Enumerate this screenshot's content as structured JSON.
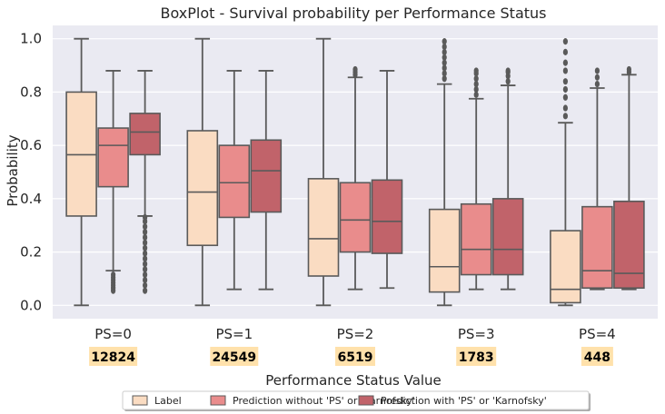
{
  "chart_data": {
    "type": "boxplot",
    "title": "BoxPlot - Survival probability per Performance Status",
    "xlabel": "Performance Status Value",
    "ylabel": "Probability",
    "ylim": [
      -0.05,
      1.05
    ],
    "yticks": [
      "0.0",
      "0.2",
      "0.4",
      "0.6",
      "0.8",
      "1.0"
    ],
    "ytick_values": [
      0,
      0.2,
      0.4,
      0.6,
      0.8,
      1.0
    ],
    "grid": true,
    "legend_position": "bottom-center",
    "categories": [
      "PS=0",
      "PS=1",
      "PS=2",
      "PS=3",
      "PS=4"
    ],
    "counts": [
      "12824",
      "24549",
      "6519",
      "1783",
      "448"
    ],
    "series": [
      {
        "name": "Label",
        "color": "#fadcc2",
        "boxes": [
          {
            "whisker_low": 0.0,
            "q1": 0.335,
            "median": 0.565,
            "q3": 0.8,
            "whisker_high": 1.0,
            "outliers_low": [],
            "outliers_high": []
          },
          {
            "whisker_low": 0.0,
            "q1": 0.225,
            "median": 0.425,
            "q3": 0.655,
            "whisker_high": 1.0,
            "outliers_low": [],
            "outliers_high": []
          },
          {
            "whisker_low": 0.0,
            "q1": 0.11,
            "median": 0.25,
            "q3": 0.475,
            "whisker_high": 1.0,
            "outliers_low": [],
            "outliers_high": []
          },
          {
            "whisker_low": 0.0,
            "q1": 0.05,
            "median": 0.145,
            "q3": 0.36,
            "whisker_high": 0.83,
            "outliers_low": [],
            "outliers_high": [
              0.85,
              0.87,
              0.89,
              0.91,
              0.93,
              0.95,
              0.97,
              0.99
            ]
          },
          {
            "whisker_low": 0.0,
            "q1": 0.01,
            "median": 0.06,
            "q3": 0.28,
            "whisker_high": 0.685,
            "outliers_low": [],
            "outliers_high": [
              0.71,
              0.74,
              0.78,
              0.81,
              0.84,
              0.88,
              0.91,
              0.95,
              0.99
            ]
          }
        ]
      },
      {
        "name": "Prediction without 'PS' or 'Karnofsky'",
        "color": "#e98c8c",
        "boxes": [
          {
            "whisker_low": 0.13,
            "q1": 0.445,
            "median": 0.6,
            "q3": 0.665,
            "whisker_high": 0.88,
            "outliers_low": [
              0.055,
              0.065,
              0.075,
              0.085,
              0.095,
              0.105,
              0.115
            ],
            "outliers_high": []
          },
          {
            "whisker_low": 0.06,
            "q1": 0.33,
            "median": 0.46,
            "q3": 0.6,
            "whisker_high": 0.88,
            "outliers_low": [],
            "outliers_high": []
          },
          {
            "whisker_low": 0.06,
            "q1": 0.2,
            "median": 0.32,
            "q3": 0.46,
            "whisker_high": 0.855,
            "outliers_low": [],
            "outliers_high": [
              0.865,
              0.875,
              0.885
            ]
          },
          {
            "whisker_low": 0.06,
            "q1": 0.115,
            "median": 0.21,
            "q3": 0.38,
            "whisker_high": 0.775,
            "outliers_low": [],
            "outliers_high": [
              0.79,
              0.81,
              0.83,
              0.85,
              0.87,
              0.88
            ]
          },
          {
            "whisker_low": 0.06,
            "q1": 0.065,
            "median": 0.13,
            "q3": 0.37,
            "whisker_high": 0.815,
            "outliers_low": [],
            "outliers_high": [
              0.83,
              0.855,
              0.88
            ]
          }
        ]
      },
      {
        "name": "Prediction with 'PS' or 'Karnofsky'",
        "color": "#c1636a",
        "boxes": [
          {
            "whisker_low": 0.335,
            "q1": 0.565,
            "median": 0.65,
            "q3": 0.72,
            "whisker_high": 0.88,
            "outliers_low": [
              0.055,
              0.075,
              0.095,
              0.115,
              0.135,
              0.155,
              0.175,
              0.195,
              0.215,
              0.235,
              0.255,
              0.275,
              0.295,
              0.315,
              0.33
            ],
            "outliers_high": []
          },
          {
            "whisker_low": 0.06,
            "q1": 0.35,
            "median": 0.505,
            "q3": 0.62,
            "whisker_high": 0.88,
            "outliers_low": [],
            "outliers_high": []
          },
          {
            "whisker_low": 0.065,
            "q1": 0.195,
            "median": 0.315,
            "q3": 0.47,
            "whisker_high": 0.88,
            "outliers_low": [],
            "outliers_high": []
          },
          {
            "whisker_low": 0.06,
            "q1": 0.115,
            "median": 0.21,
            "q3": 0.4,
            "whisker_high": 0.825,
            "outliers_low": [],
            "outliers_high": [
              0.84,
              0.86,
              0.875,
              0.88
            ]
          },
          {
            "whisker_low": 0.06,
            "q1": 0.065,
            "median": 0.12,
            "q3": 0.39,
            "whisker_high": 0.865,
            "outliers_low": [],
            "outliers_high": [
              0.875,
              0.885
            ]
          }
        ]
      }
    ]
  },
  "colors": {
    "plot_background": "#eaeaf2",
    "grid": "#ffffff",
    "box_edge": "#5a5a5a",
    "count_badge": "#ffe1ab",
    "outlier": "#5a5a5a"
  }
}
